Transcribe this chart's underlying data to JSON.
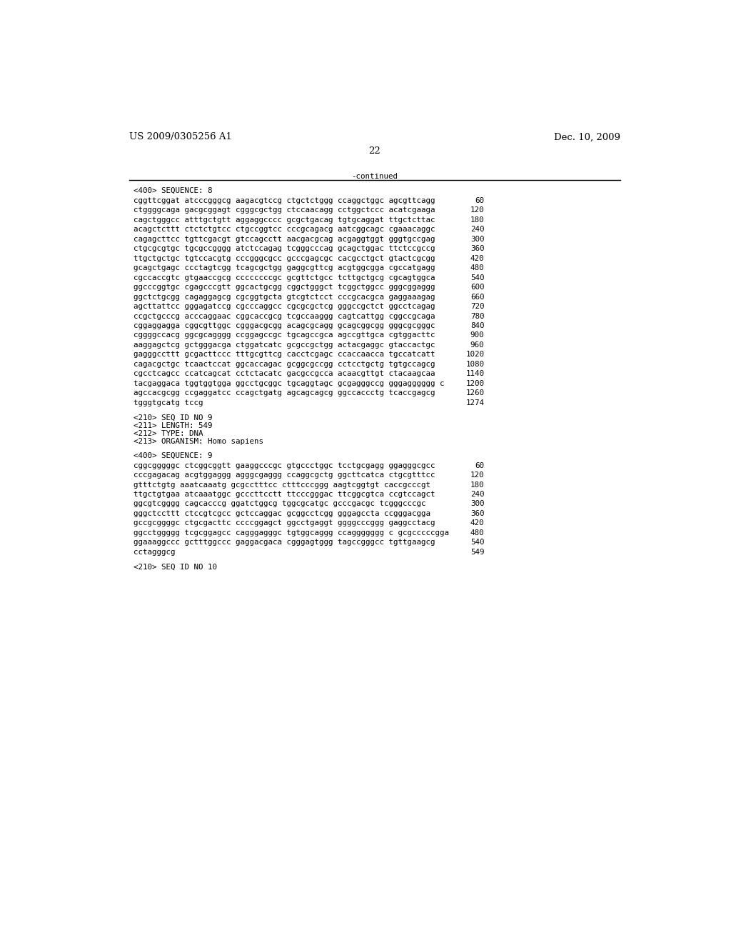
{
  "page_left": "US 2009/0305256 A1",
  "page_right": "Dec. 10, 2009",
  "page_number": "22",
  "continued_label": "-continued",
  "background_color": "#ffffff",
  "text_color": "#000000",
  "font_size_header": 9.5,
  "font_size_body": 7.8,
  "lines": [
    {
      "type": "section",
      "text": "<400> SEQUENCE: 8"
    },
    {
      "type": "seq",
      "text": "cggttcggat atcccgggcg aagacgtccg ctgctctggg ccaggctggc agcgttcagg",
      "num": "60"
    },
    {
      "type": "seq",
      "text": "ctggggcaga gacgcggagt cgggcgctgg ctccaacagg cctggctccc acatcgaaga",
      "num": "120"
    },
    {
      "type": "seq",
      "text": "cagctgggcc atttgctgtt aggaggcccc gcgctgacag tgtgcaggat ttgctcttac",
      "num": "180"
    },
    {
      "type": "seq",
      "text": "acagctcttt ctctctgtcc ctgccggtcc cccgcagacg aatcggcagc cgaaacaggc",
      "num": "240"
    },
    {
      "type": "seq",
      "text": "cagagcttcc tgttcgacgt gtccagcctt aacgacgcag acgaggtggt gggtgccgag",
      "num": "300"
    },
    {
      "type": "seq",
      "text": "ctgcgcgtgc tgcgccgggg atctccagag tcgggcccag gcagctggac ttctccgccg",
      "num": "360"
    },
    {
      "type": "seq",
      "text": "ttgctgctgc tgtccacgtg cccgggcgcc gcccgagcgc cacgcctgct gtactcgcgg",
      "num": "420"
    },
    {
      "type": "seq",
      "text": "gcagctgagc ccctagtcgg tcagcgctgg gaggcgttcg acgtggcgga cgccatgagg",
      "num": "480"
    },
    {
      "type": "seq",
      "text": "cgccaccgtc gtgaaccgcg ccccccccgc gcgttctgcc tcttgctgcg cgcagtggca",
      "num": "540"
    },
    {
      "type": "seq",
      "text": "ggcccggtgc cgagcccgtt ggcactgcgg cggctgggct tcggctggcc gggcggaggg",
      "num": "600"
    },
    {
      "type": "seq",
      "text": "ggctctgcgg cagaggagcg cgcggtgcta gtcgtctcct cccgcacgca gaggaaagag",
      "num": "660"
    },
    {
      "type": "seq",
      "text": "agcttattcc gggagatccg cgcccaggcc cgcgcgctcg gggccgctct ggcctcagag",
      "num": "720"
    },
    {
      "type": "seq",
      "text": "ccgctgcccg acccaggaac cggcaccgcg tcgccaaggg cagtcattgg cggccgcaga",
      "num": "780"
    },
    {
      "type": "seq",
      "text": "cggaggagga cggcgttggc cgggacgcgg acagcgcagg gcagcggcgg gggcgcgggc",
      "num": "840"
    },
    {
      "type": "seq",
      "text": "cggggccacg ggcgcagggg ccggagccgc tgcagccgca agccgttgca cgtggacttc",
      "num": "900"
    },
    {
      "type": "seq",
      "text": "aaggagctcg gctgggacga ctggatcatc gcgccgctgg actacgaggc gtaccactgc",
      "num": "960"
    },
    {
      "type": "seq",
      "text": "gagggccttt gcgacttccc tttgcgttcg cacctcgagc ccaccaacca tgccatcatt",
      "num": "1020"
    },
    {
      "type": "seq",
      "text": "cagacgctgc tcaactccat ggcaccagac gcggcgccgg cctcctgctg tgtgccagcg",
      "num": "1080"
    },
    {
      "type": "seq",
      "text": "cgcctcagcc ccatcagcat cctctacatc gacgccgcca acaacgttgt ctacaagcaa",
      "num": "1140"
    },
    {
      "type": "seq",
      "text": "tacgaggaca tggtggtgga ggcctgcggc tgcaggtagc gcgagggccg gggagggggg c",
      "num": "1200"
    },
    {
      "type": "seq",
      "text": "agccacgcgg ccgaggatcc ccagctgatg agcagcagcg ggccaccctg tcaccgagcg",
      "num": "1260"
    },
    {
      "type": "seq",
      "text": "tgggtgcatg tccg",
      "num": "1274"
    },
    {
      "type": "gap"
    },
    {
      "type": "meta",
      "text": "<210> SEQ ID NO 9"
    },
    {
      "type": "meta",
      "text": "<211> LENGTH: 549"
    },
    {
      "type": "meta",
      "text": "<212> TYPE: DNA"
    },
    {
      "type": "meta",
      "text": "<213> ORGANISM: Homo sapiens"
    },
    {
      "type": "gap"
    },
    {
      "type": "section",
      "text": "<400> SEQUENCE: 9"
    },
    {
      "type": "seq",
      "text": "cggcgggggc ctcggcggtt gaaggcccgc gtgccctggc tcctgcgagg ggagggcgcc",
      "num": "60"
    },
    {
      "type": "seq",
      "text": "cccgagacag acgtggaggg agggcgaggg ccaggcgctg ggcttcatca ctgcgtttcc",
      "num": "120"
    },
    {
      "type": "seq",
      "text": "gtttctgtg aaatcaaatg gcgcctttcc ctttcccggg aagtcggtgt caccgcccgt",
      "num": "180"
    },
    {
      "type": "seq",
      "text": "ttgctgtgaa atcaaatggc gcccttcctt ttcccgggac ttcggcgtca ccgtccagct",
      "num": "240"
    },
    {
      "type": "seq",
      "text": "ggcgtcgggg cagcacccg ggatctggcg tggcgcatgc gcccgacgc tcgggcccgc",
      "num": "300"
    },
    {
      "type": "seq",
      "text": "gggctccttt ctccgtcgcc gctccaggac gcggcctcgg gggagccta ccgggacgga",
      "num": "360"
    },
    {
      "type": "seq",
      "text": "gccgcggggc ctgcgacttc ccccggagct ggcctgaggt ggggcccggg gaggcctacg",
      "num": "420"
    },
    {
      "type": "seq",
      "text": "ggcctggggg tcgcggagcc cagggagggc tgtggcaggg ccaggggggg c gcgcccccgga",
      "num": "480"
    },
    {
      "type": "seq",
      "text": "ggaaaggccc gctttggccc gaggacgaca cgggagtggg tagccgggcc tgttgaagcg",
      "num": "540"
    },
    {
      "type": "seq",
      "text": "cctagggcg",
      "num": "549"
    },
    {
      "type": "gap"
    },
    {
      "type": "meta_last",
      "text": "<210> SEQ ID NO 10"
    }
  ]
}
